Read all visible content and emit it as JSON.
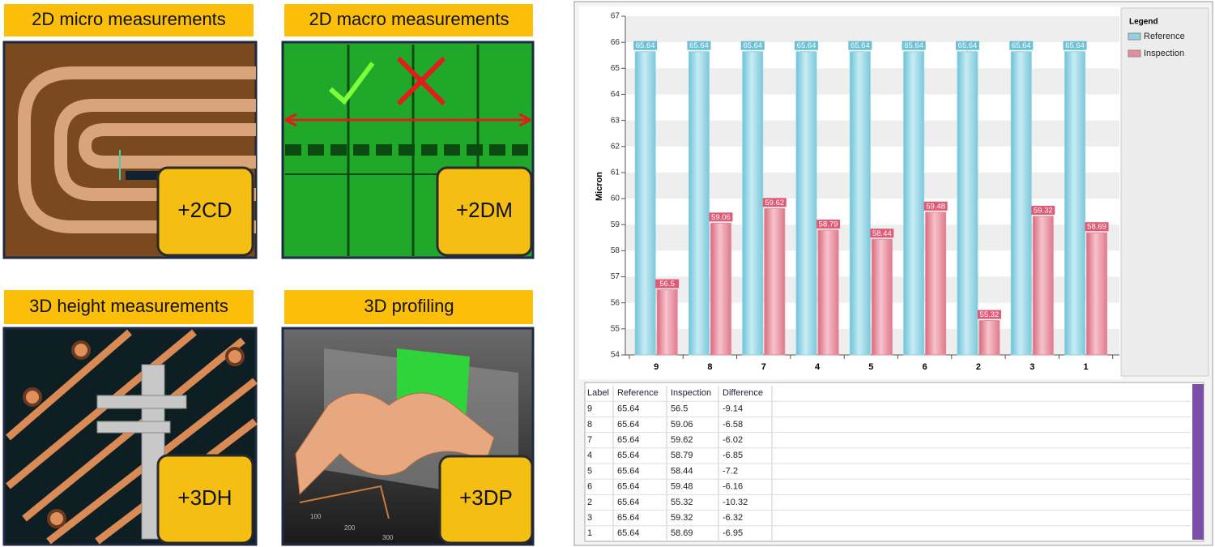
{
  "panels": [
    {
      "title": "2D micro measurements",
      "badge": "+2CD"
    },
    {
      "title": "2D macro measurements",
      "badge": "+2DM"
    },
    {
      "title": "3D height measurements",
      "badge": "+3DH"
    },
    {
      "title": "3D profiling",
      "badge": "+3DP",
      "axis_labels": [
        "100",
        "200",
        "300"
      ]
    }
  ],
  "chart_data": {
    "type": "bar",
    "y_label": "Micron",
    "legend_title": "Legend",
    "categories": [
      "9",
      "8",
      "7",
      "4",
      "5",
      "6",
      "2",
      "3",
      "1"
    ],
    "series": [
      {
        "name": "Reference",
        "color": "#8fd3e3",
        "values": [
          65.64,
          65.64,
          65.64,
          65.64,
          65.64,
          65.64,
          65.64,
          65.64,
          65.64
        ]
      },
      {
        "name": "Inspection",
        "color": "#e88a9a",
        "values": [
          56.5,
          59.06,
          59.62,
          58.79,
          58.44,
          59.48,
          55.32,
          59.32,
          58.69
        ]
      }
    ],
    "ylim": [
      54,
      67
    ],
    "yticks": [
      54,
      55,
      56,
      57,
      58,
      59,
      60,
      61,
      62,
      63,
      64,
      65,
      66,
      67
    ],
    "grid": true,
    "legend": "right"
  },
  "table": {
    "headers": [
      "Label",
      "Reference",
      "Inspection",
      "Difference"
    ],
    "rows": [
      [
        "9",
        65.64,
        56.5,
        -9.14
      ],
      [
        "8",
        65.64,
        59.06,
        -6.58
      ],
      [
        "7",
        65.64,
        59.62,
        -6.02
      ],
      [
        "4",
        65.64,
        58.79,
        -6.85
      ],
      [
        "5",
        65.64,
        58.44,
        -7.2
      ],
      [
        "6",
        65.64,
        59.48,
        -6.16
      ],
      [
        "2",
        65.64,
        55.32,
        -10.32
      ],
      [
        "3",
        65.64,
        59.32,
        -6.32
      ],
      [
        "1",
        65.64,
        58.69,
        -6.95
      ]
    ]
  }
}
